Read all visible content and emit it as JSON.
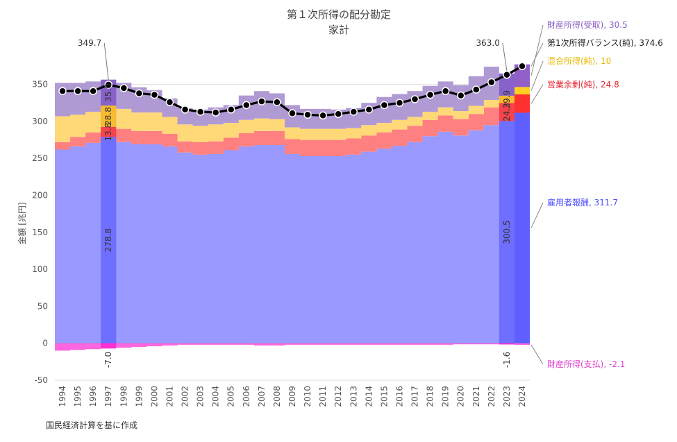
{
  "chart_data": {
    "type": "area",
    "title": "第１次所得の配分勘定",
    "subtitle": "家計",
    "ylabel": "金額 [兆円]",
    "source_note": "国民経済計算を基に作成",
    "ylim": [
      -50,
      375
    ],
    "yticks": [
      -50,
      0,
      50,
      100,
      150,
      200,
      250,
      300,
      350
    ],
    "categories": [
      "1994",
      "1995",
      "1996",
      "1997",
      "1998",
      "1999",
      "2000",
      "2001",
      "2002",
      "2003",
      "2004",
      "2005",
      "2006",
      "2007",
      "2008",
      "2009",
      "2010",
      "2011",
      "2012",
      "2013",
      "2014",
      "2015",
      "2016",
      "2017",
      "2018",
      "2019",
      "2020",
      "2021",
      "2022",
      "2023",
      "2024"
    ],
    "highlight_years": [
      "1997",
      "2023"
    ],
    "series": [
      {
        "name": "雇用者報酬",
        "color": "#9999ff",
        "values": [
          262,
          266,
          271,
          278.8,
          272,
          269,
          269,
          266,
          258,
          255,
          256,
          261,
          266,
          268,
          268,
          256,
          253,
          253,
          253,
          255,
          259,
          263,
          267,
          272,
          280,
          286,
          281,
          288,
          295,
          300.5,
          311.7
        ]
      },
      {
        "name": "営業余剰(純)",
        "color": "#ff8080",
        "values": [
          10,
          13,
          14,
          13.8,
          18,
          18,
          18,
          17,
          15,
          17,
          17,
          17,
          18,
          19,
          19,
          20,
          22,
          22,
          22,
          22,
          22,
          22,
          22,
          22,
          22,
          22,
          22,
          22,
          24,
          24.3,
          24.8
        ]
      },
      {
        "name": "混合所得(純)",
        "color": "#ffd878",
        "values": [
          35,
          30,
          28,
          28.8,
          27,
          25,
          25,
          23,
          23,
          22,
          23,
          20,
          18,
          17,
          16,
          16,
          15,
          15,
          15,
          14,
          14,
          13,
          13,
          12,
          11,
          11,
          11,
          11,
          10,
          10,
          10
        ]
      },
      {
        "name": "財産所得(受取)",
        "color": "#b09ad4",
        "values": [
          45,
          43,
          41,
          35,
          35,
          34,
          30,
          25,
          22,
          22,
          23,
          24,
          33,
          37,
          35,
          30,
          27,
          27,
          26,
          27,
          30,
          35,
          35,
          35,
          35,
          35,
          35,
          40,
          45,
          29.9,
          30.5
        ]
      },
      {
        "name": "財産所得(支払)",
        "color": "#ff66e0",
        "values": [
          -10,
          -9,
          -8,
          -7.0,
          -6,
          -5,
          -4,
          -3,
          -2,
          -2,
          -2,
          -2,
          -2,
          -3,
          -3,
          -2,
          -2,
          -2,
          -2,
          -2,
          -2,
          -2,
          -2,
          -2,
          -2,
          -2,
          -1.5,
          -1.5,
          -1.5,
          -1.6,
          -2.1
        ]
      }
    ],
    "balance": {
      "name": "第1次所得バランス(純)",
      "color": "#000000",
      "values": [
        341,
        341,
        341,
        349.7,
        345,
        338,
        336,
        326,
        316,
        313,
        312,
        316,
        322,
        327,
        326,
        311,
        309,
        308,
        310,
        313,
        316,
        322,
        325,
        330,
        336,
        341,
        335,
        343,
        353,
        363.0,
        374.6
      ]
    },
    "value_labels_1997": [
      "278.8",
      "13.8",
      "28.8",
      "35.0"
    ],
    "value_labels_2023": [
      "300.5",
      "24.3",
      "29.9"
    ],
    "top_labels": [
      {
        "year": "1997",
        "text": "349.7"
      },
      {
        "year": "2023",
        "text": "363.0"
      }
    ],
    "bottom_labels": [
      {
        "year": "1997",
        "text": "-7.0"
      },
      {
        "year": "2023",
        "text": "-1.6"
      }
    ],
    "right_labels": [
      {
        "text": "財産所得(受取), 30.5",
        "color": "#8c5fc2"
      },
      {
        "text": "第1次所得バランス(純), 374.6",
        "color": "#222222"
      },
      {
        "text": "混合所得(純), 10",
        "color": "#e6b800"
      },
      {
        "text": "営業余剰(純), 24.8",
        "color": "#e8212e"
      },
      {
        "text": "雇用者報酬, 311.7",
        "color": "#4d4dff"
      },
      {
        "text": "財産所得(支払), -2.1",
        "color": "#e040d0"
      }
    ]
  }
}
